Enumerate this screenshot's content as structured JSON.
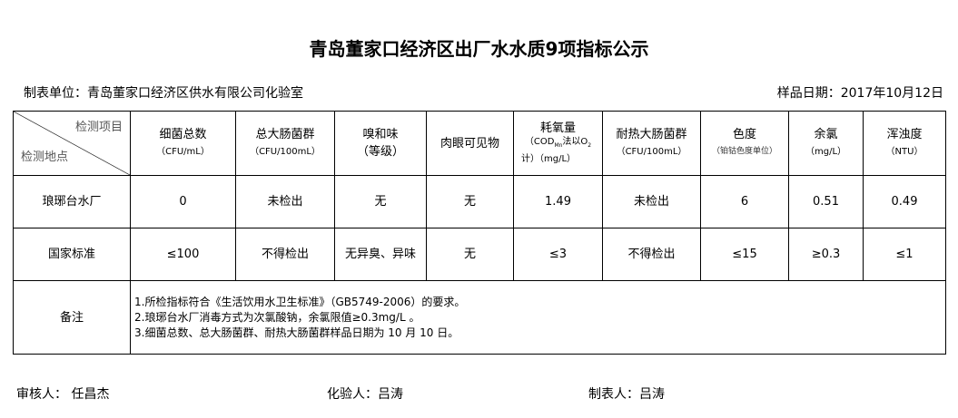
{
  "title": "青岛董家口经济区出厂水水质9项指标公示",
  "unit": "制表单位：青岛董家口经济区供水有限公司化验室",
  "date": "样品日期：2017年10月12日",
  "corner": {
    "top": "检测项目",
    "bottom": "检测地点"
  },
  "headers": [
    {
      "l1": "细菌总数",
      "l2": "（CFU/mL）"
    },
    {
      "l1": "总大肠菌群",
      "l2": "（CFU/100mL）"
    },
    {
      "l1": "嗅和味",
      "l2": "（等级）"
    },
    {
      "l1": "肉眼可见物",
      "l2": ""
    },
    {
      "l1": "耗氧量",
      "l2": "（COD",
      "sub": "Mn",
      "l2b": "法以O",
      "sub2": "2",
      "l3": "计）（mg/L）"
    },
    {
      "l1": "耐热大肠菌群",
      "l2": "（CFU/100mL）"
    },
    {
      "l1": "色度",
      "l2": "（铂钴色度单位）"
    },
    {
      "l1": "余氯",
      "l2": "（mg/L）"
    },
    {
      "l1": "浑浊度",
      "l2": "（NTU）"
    }
  ],
  "rows": [
    {
      "label": "琅琊台水厂",
      "values": [
        "0",
        "未检出",
        "无",
        "无",
        "1.49",
        "未检出",
        "6",
        "0.51",
        "0.49"
      ]
    },
    {
      "label": "国家标准",
      "values": [
        "≤100",
        "不得检出",
        "无异臭、异味",
        "无",
        "≤3",
        "不得检出",
        "≤15",
        "≥0.3",
        "≤1"
      ]
    }
  ],
  "notes": {
    "label": "备注",
    "lines": [
      "1.所检指标符合《生活饮用水卫生标准》（GB5749-2006）的要求。",
      "2.琅琊台水厂消毒方式为次氯酸钠，余氯限值≥0.3mg/L 。",
      "3.细菌总数、总大肠菌群、耐热大肠菌群样品日期为 10 月 10 日。"
    ]
  },
  "footer": {
    "reviewer": "审核人：  任昌杰",
    "tester": "化验人：吕涛",
    "maker": "制表人：吕涛"
  }
}
